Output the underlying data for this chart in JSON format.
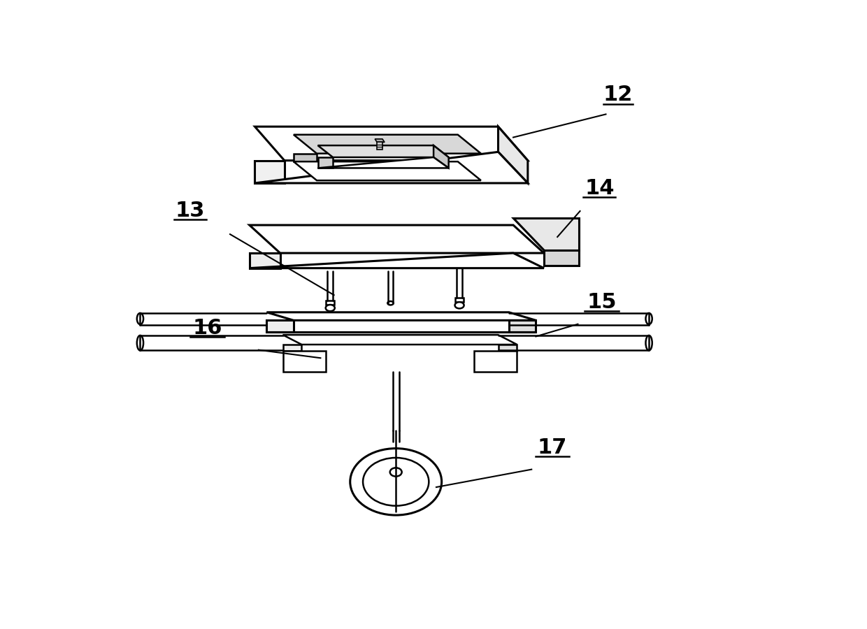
{
  "bg_color": "#ffffff",
  "line_color": "#000000",
  "lw": 1.8,
  "lw_thick": 2.2,
  "label_fontsize": 22,
  "label_fontweight": "bold"
}
